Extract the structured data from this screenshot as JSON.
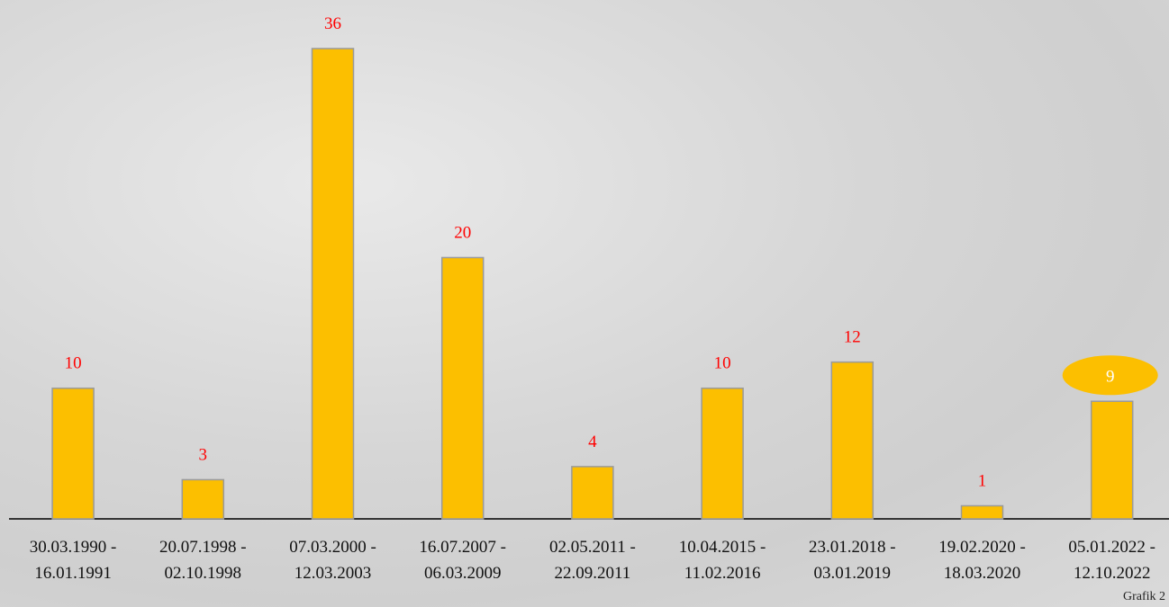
{
  "chart_data": {
    "type": "bar",
    "categories": [
      "30.03.1990 -\n16.01.1991",
      "20.07.1998 -\n02.10.1998",
      "07.03.2000 -\n12.03.2003",
      "16.07.2007 -\n06.03.2009",
      "02.05.2011 -\n22.09.2011",
      "10.04.2015 -\n11.02.2016",
      "23.01.2018 -\n03.01.2019",
      "19.02.2020 -\n18.03.2020",
      "05.01.2022 -\n12.10.2022"
    ],
    "values": [
      10,
      3,
      36,
      20,
      4,
      10,
      12,
      1,
      9
    ],
    "color": "#fcbf00",
    "label_color": "#ff0000",
    "highlight_index": 8,
    "highlight_color": "#fcbf00",
    "caption": "Grafik 2"
  }
}
